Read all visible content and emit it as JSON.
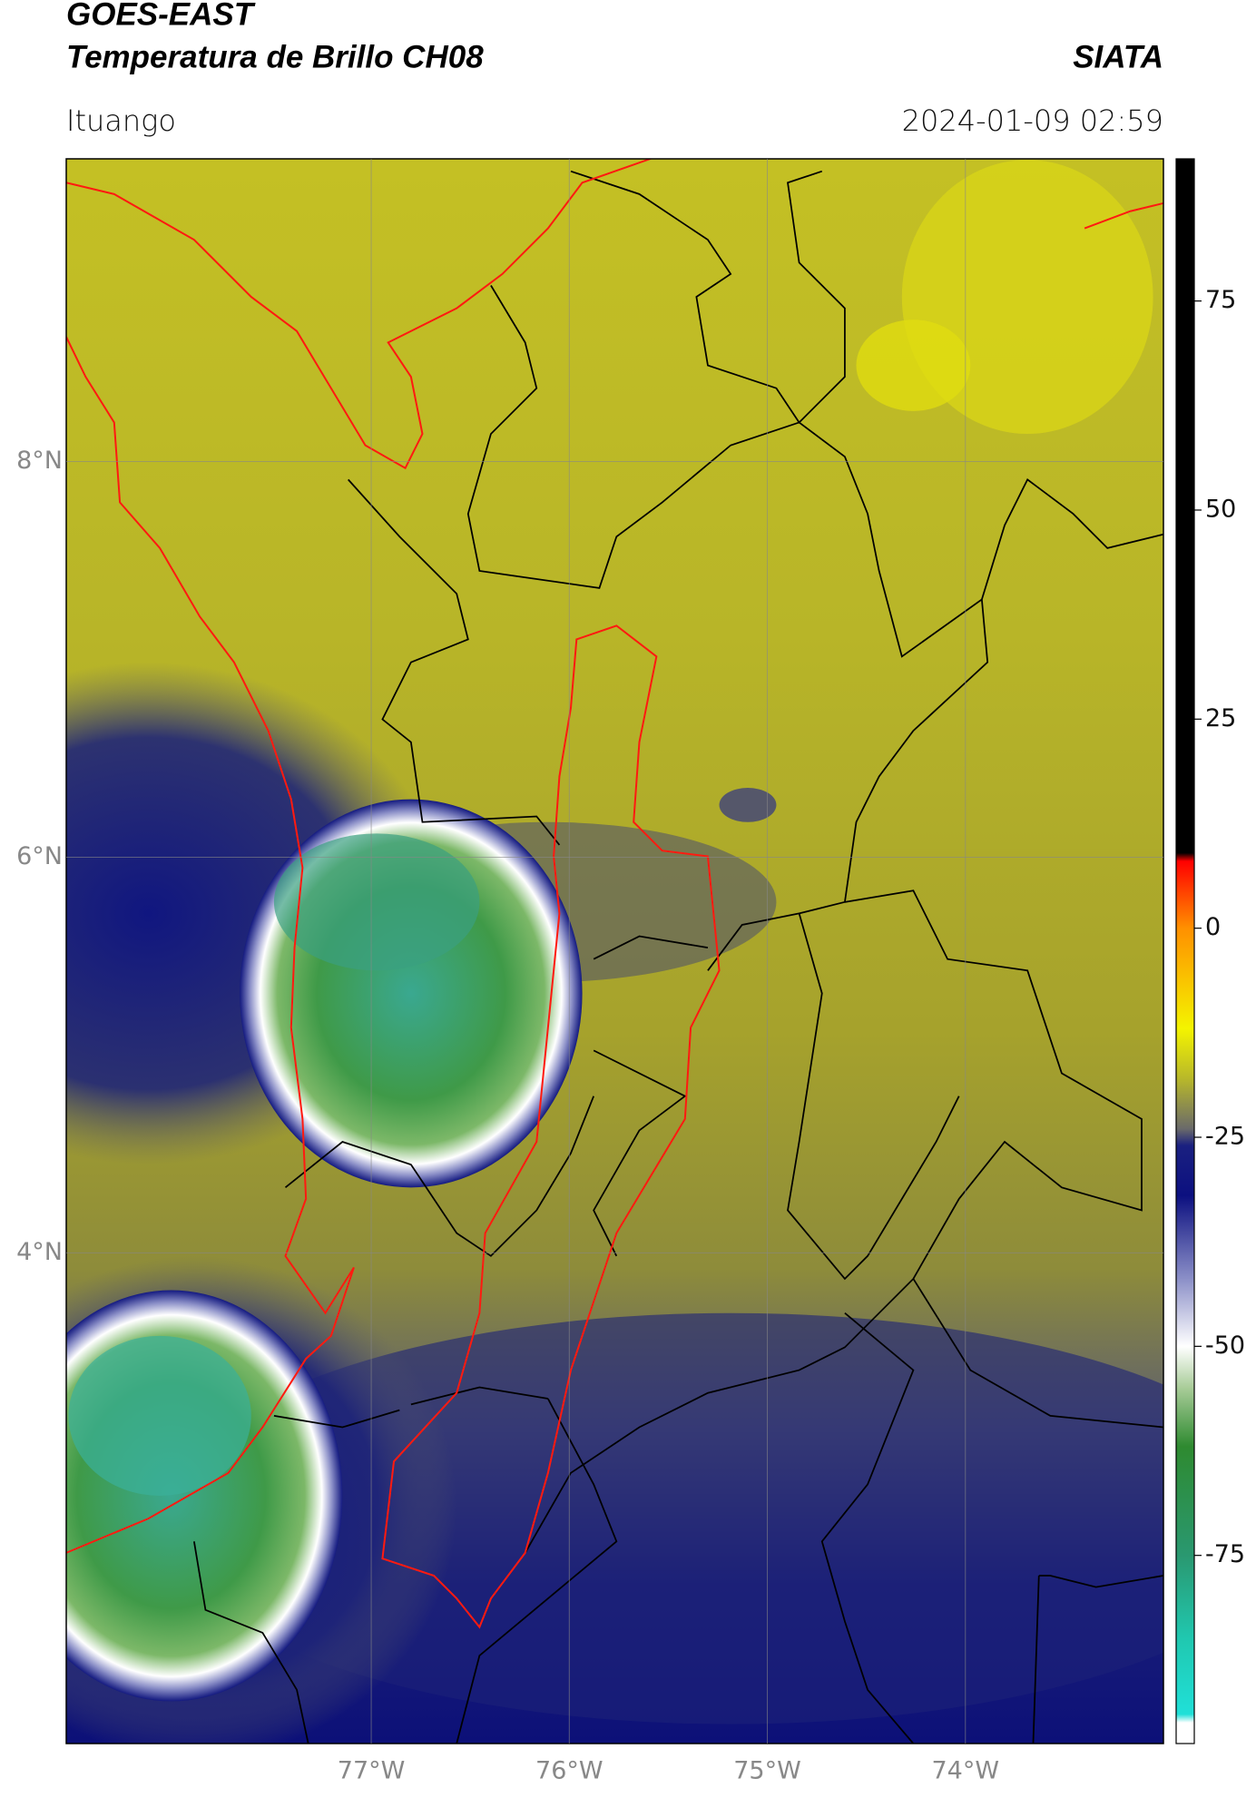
{
  "header": {
    "title": "GOES-EAST",
    "subtitle": "Temperatura de Brillo CH08",
    "brand": "SIATA",
    "location": "Ituango",
    "datetime": "2024-01-09 02:59"
  },
  "map": {
    "xlim": [
      -78.54,
      -73.0
    ],
    "ylim": [
      1.52,
      9.53
    ],
    "xticks": [
      {
        "value": -77,
        "label": "77°W"
      },
      {
        "value": -76,
        "label": "76°W"
      },
      {
        "value": -75,
        "label": "75°W"
      },
      {
        "value": -74,
        "label": "74°W"
      }
    ],
    "yticks": [
      {
        "value": 8,
        "label": "8°N"
      },
      {
        "value": 6,
        "label": "6°N"
      },
      {
        "value": 4,
        "label": "4°N"
      }
    ],
    "grid": true
  },
  "colorbar": {
    "lim": [
      -97.5,
      92
    ],
    "ticks": [
      75,
      50,
      25,
      0,
      -25,
      -50,
      -75
    ],
    "colormap": [
      {
        "value": -97.5,
        "color": "#ffffff"
      },
      {
        "value": -95,
        "color": "#ffffff"
      },
      {
        "value": -94,
        "color": "#20e0d8"
      },
      {
        "value": -85,
        "color": "#20c8b0"
      },
      {
        "value": -75,
        "color": "#2a9870"
      },
      {
        "value": -62,
        "color": "#2e8a30"
      },
      {
        "value": -55,
        "color": "#a8cc98"
      },
      {
        "value": -50,
        "color": "#ffffff"
      },
      {
        "value": -42,
        "color": "#8c90c8"
      },
      {
        "value": -32,
        "color": "#0c1080"
      },
      {
        "value": -26,
        "color": "#1a2080"
      },
      {
        "value": -24,
        "color": "#6a6a6a"
      },
      {
        "value": -18,
        "color": "#b8b82a"
      },
      {
        "value": -12,
        "color": "#f4f400"
      },
      {
        "value": 0,
        "color": "#ff9000"
      },
      {
        "value": 8,
        "color": "#ff0000"
      },
      {
        "value": 9,
        "color": "#000000"
      },
      {
        "value": 92,
        "color": "#000000"
      }
    ]
  }
}
